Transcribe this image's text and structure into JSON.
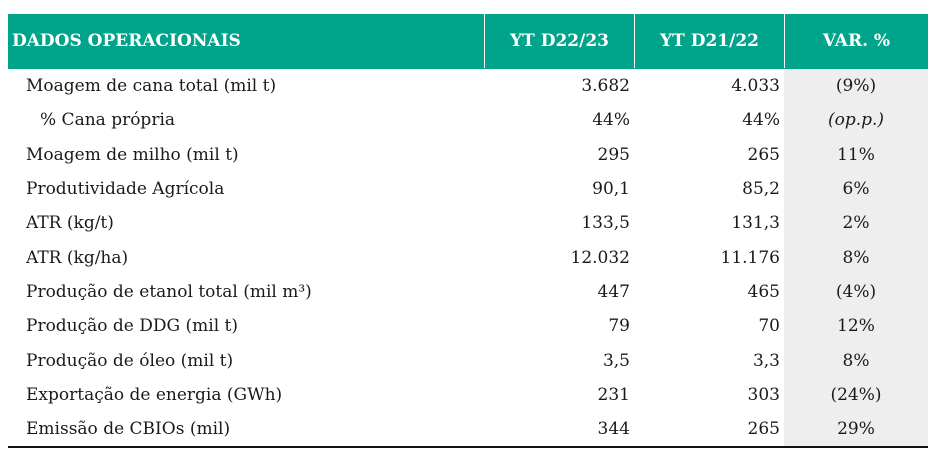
{
  "header": {
    "col0": "DADOS OPERACIONAIS",
    "col1": "YT D22/23",
    "col2": "YT D21/22",
    "col3": "VAR. %"
  },
  "rows": [
    {
      "label": "Moagem de cana total (mil t)",
      "ytd2223": "3.682",
      "ytd2122": "4.033",
      "var": "(9%)"
    },
    {
      "label": "% Cana própria",
      "ytd2223": "44%",
      "ytd2122": "44%",
      "var": "(op.p.)"
    },
    {
      "label": "Moagem de milho (mil t)",
      "ytd2223": "295",
      "ytd2122": "265",
      "var": "11%"
    },
    {
      "label": "Produtividade Agrícola",
      "ytd2223": "90,1",
      "ytd2122": "85,2",
      "var": "6%"
    },
    {
      "label": "ATR (kg/t)",
      "ytd2223": "133,5",
      "ytd2122": "131,3",
      "var": "2%"
    },
    {
      "label": "ATR (kg/ha)",
      "ytd2223": "12.032",
      "ytd2122": "11.176",
      "var": "8%"
    },
    {
      "label": "Produção de etanol total (mil m³)",
      "ytd2223": "447",
      "ytd2122": "465",
      "var": "(4%)"
    },
    {
      "label": "Produção de DDG (mil t)",
      "ytd2223": "79",
      "ytd2122": "70",
      "var": "12%"
    },
    {
      "label": "Produção de óleo (mil t)",
      "ytd2223": "3,5",
      "ytd2122": "3,3",
      "var": "8%"
    },
    {
      "label": "Exportação de energia (GWh)",
      "ytd2223": "231",
      "ytd2122": "303",
      "var": "(24%)"
    },
    {
      "label": "Emissão de CBIOs (mil)",
      "ytd2223": "344",
      "ytd2122": "265",
      "var": "29%"
    }
  ]
}
